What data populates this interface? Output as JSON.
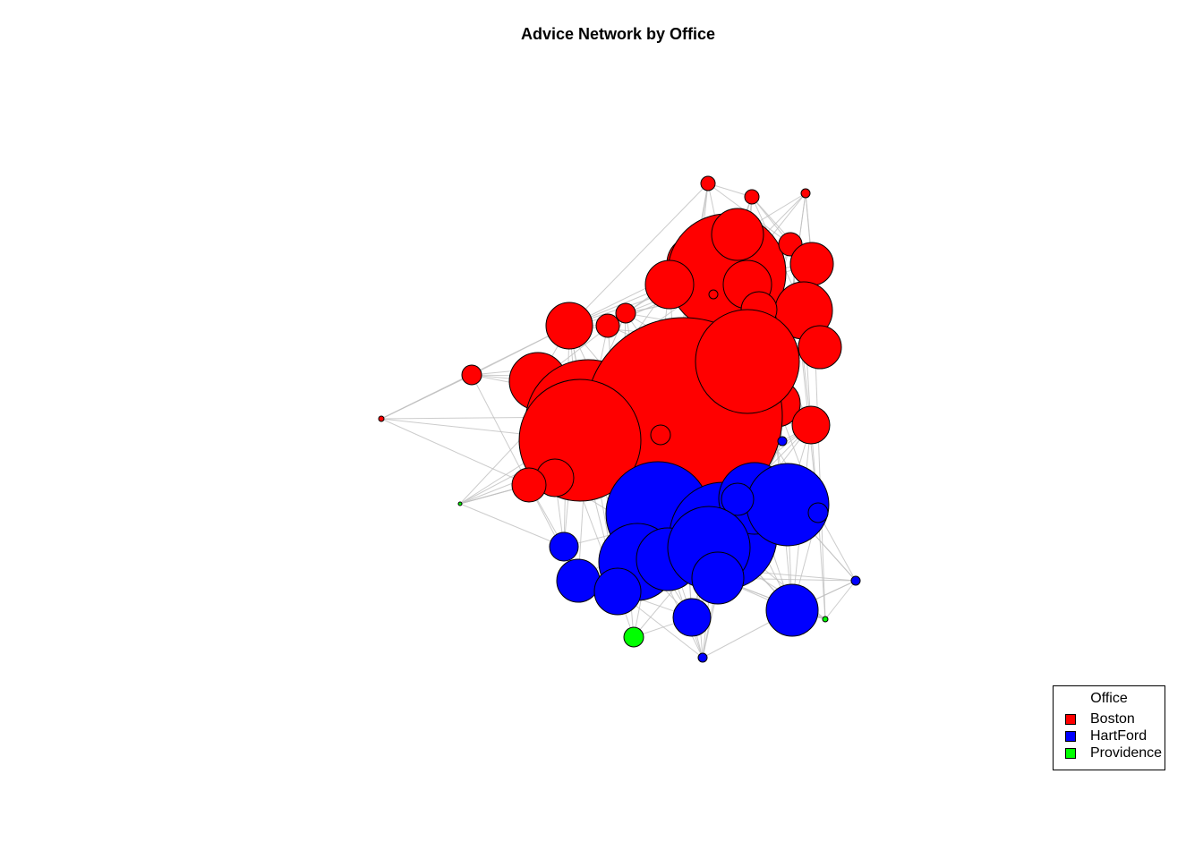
{
  "title": "Advice Network by Office",
  "legend": {
    "title": "Office",
    "items": [
      {
        "label": "Boston",
        "color": "#ff0000"
      },
      {
        "label": "HartFord",
        "color": "#0000ff"
      },
      {
        "label": "Providence",
        "color": "#00ff00"
      }
    ]
  },
  "colors": {
    "edge": "#bfbfbf",
    "node_stroke": "#000000"
  }
}
